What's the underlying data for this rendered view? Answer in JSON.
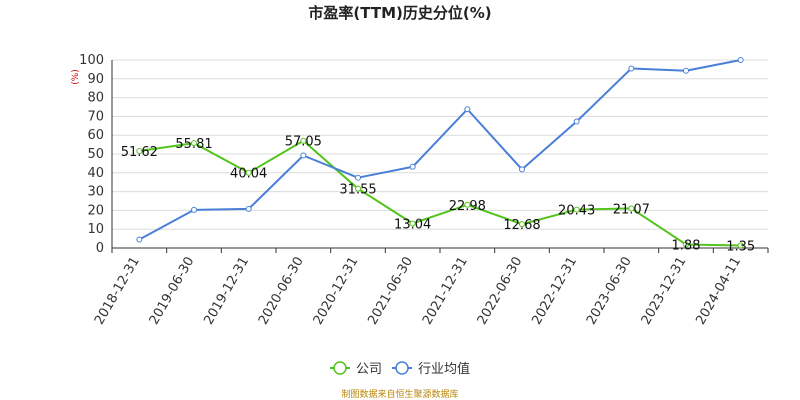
{
  "chart_data": {
    "type": "line",
    "title": "市盈率(TTM)历史分位(%)",
    "ylabel": "(%)",
    "ylim": [
      0,
      100
    ],
    "yticks": [
      0,
      10,
      20,
      30,
      40,
      50,
      60,
      70,
      80,
      90,
      100
    ],
    "grid": true,
    "legend_position": "bottom",
    "categories": [
      "2018-12-31",
      "2019-06-30",
      "2019-12-31",
      "2020-06-30",
      "2020-12-31",
      "2021-06-30",
      "2021-12-31",
      "2022-06-30",
      "2022-12-31",
      "2023-06-30",
      "2023-12-31",
      "2024-04-11"
    ],
    "series": [
      {
        "name": "公司",
        "color": "#52c41a",
        "values": [
          51.62,
          55.81,
          40.04,
          57.05,
          31.55,
          13.04,
          22.98,
          12.68,
          20.43,
          21.07,
          1.88,
          1.35
        ],
        "labels": [
          "51.62",
          "55.81",
          "40.04",
          "57.05",
          "31.55",
          "13.04",
          "22.98",
          "12.68",
          "20.43",
          "21.07",
          "1.88",
          "1.35"
        ]
      },
      {
        "name": "行业均值",
        "color": "#4a7fd8",
        "values": [
          4.5,
          20.3,
          20.8,
          49.2,
          37.4,
          43.2,
          73.8,
          41.8,
          67.3,
          95.5,
          94.3,
          100
        ]
      }
    ],
    "source": "制图数据来自恒生聚源数据库"
  }
}
